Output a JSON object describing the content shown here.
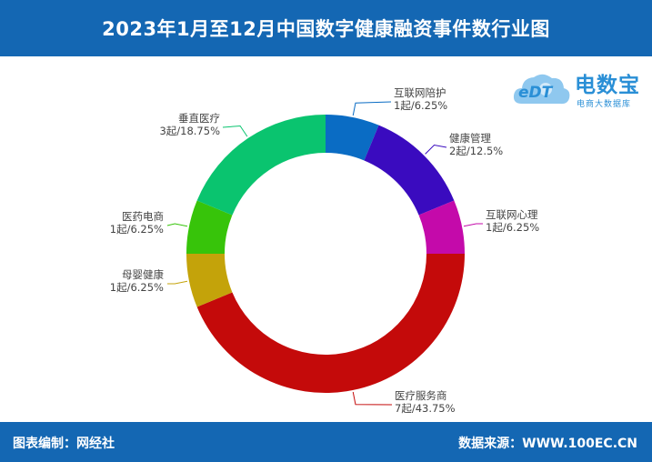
{
  "header": {
    "title": "2023年1月至12月中国数字健康融资事件数行业图"
  },
  "logo": {
    "mark": "eDT",
    "name": "电数宝",
    "tagline": "电商大数据库"
  },
  "footer": {
    "left": "图表编制：网经社",
    "right": "数据来源：WWW.100EC.CN"
  },
  "chart_data": {
    "type": "pie",
    "donut": true,
    "title": "2023年1月至12月中国数字健康融资事件数行业图",
    "unit": "起",
    "slices": [
      {
        "name": "互联网陪护",
        "value": 1,
        "percent": "6.25%",
        "label": "1起/6.25%",
        "color": "#0a6cc4"
      },
      {
        "name": "健康管理",
        "value": 2,
        "percent": "12.5%",
        "label": "2起/12.5%",
        "color": "#3a0bbf"
      },
      {
        "name": "互联网心理",
        "value": 1,
        "percent": "6.25%",
        "label": "1起/6.25%",
        "color": "#c40aaa"
      },
      {
        "name": "医疗服务商",
        "value": 7,
        "percent": "43.75%",
        "label": "7起/43.75%",
        "color": "#c40a0a"
      },
      {
        "name": "母婴健康",
        "value": 1,
        "percent": "6.25%",
        "label": "1起/6.25%",
        "color": "#c4a30a"
      },
      {
        "name": "医药电商",
        "value": 1,
        "percent": "6.25%",
        "label": "1起/6.25%",
        "color": "#37c40a"
      },
      {
        "name": "垂直医疗",
        "value": 3,
        "percent": "18.75%",
        "label": "3起/18.75%",
        "color": "#0ac46f"
      }
    ]
  }
}
